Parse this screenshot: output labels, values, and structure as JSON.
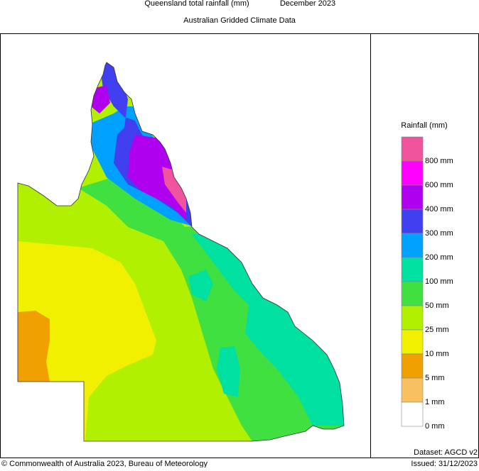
{
  "header": {
    "title": "Queensland total rainfall (mm)",
    "period": "December 2023",
    "subtitle": "Australian Gridded Climate Data"
  },
  "legend": {
    "title": "Rainfall (mm)",
    "entries": [
      {
        "label": "800 mm",
        "color": "#f0549c"
      },
      {
        "label": "600 mm",
        "color": "#ff00ff"
      },
      {
        "label": "400 mm",
        "color": "#b000f0"
      },
      {
        "label": "300 mm",
        "color": "#4040f0"
      },
      {
        "label": "200 mm",
        "color": "#00a0ff"
      },
      {
        "label": "100 mm",
        "color": "#00e0a0"
      },
      {
        "label": "50 mm",
        "color": "#40e040"
      },
      {
        "label": "25 mm",
        "color": "#b0f000"
      },
      {
        "label": "10 mm",
        "color": "#f0f000"
      },
      {
        "label": "5 mm",
        "color": "#f0a000"
      },
      {
        "label": "1 mm",
        "color": "#f8c060"
      },
      {
        "label": "0 mm",
        "color": "#ffffff"
      }
    ]
  },
  "footer": {
    "dataset": "Dataset: AGCD v2",
    "copyright": "© Commonwealth of Australia 2023, Bureau of Meteorology",
    "issued": "Issued: 31/12/2023"
  }
}
